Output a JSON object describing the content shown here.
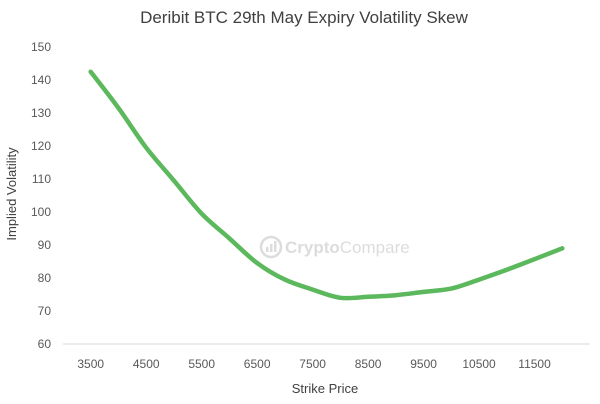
{
  "chart_data": {
    "type": "line",
    "title": "Deribit BTC 29th May Expiry Volatility Skew",
    "xlabel": "Strike Price",
    "ylabel": "Implied Volatility",
    "xlim": [
      3000,
      12500
    ],
    "ylim": [
      60,
      150
    ],
    "xticks": [
      3500,
      4500,
      5500,
      6500,
      7500,
      8500,
      9500,
      10500,
      11500
    ],
    "yticks": [
      60,
      70,
      80,
      90,
      100,
      110,
      120,
      130,
      140,
      150
    ],
    "grid": false,
    "legend": "none",
    "series": [
      {
        "color": "#5cb85c",
        "x": [
          3500,
          4000,
          4500,
          5000,
          5500,
          6000,
          6500,
          7000,
          7500,
          8000,
          8500,
          9000,
          9500,
          10000,
          10500,
          11000,
          11500,
          12000
        ],
        "y": [
          142.5,
          131.5,
          119.5,
          109.5,
          99.5,
          92.0,
          84.5,
          79.5,
          76.5,
          74.0,
          74.3,
          74.8,
          75.8,
          76.8,
          79.5,
          82.5,
          85.7,
          89.0
        ]
      }
    ]
  },
  "watermark": {
    "text_a": "Crypto",
    "text_b": "Compare"
  }
}
